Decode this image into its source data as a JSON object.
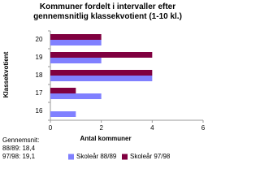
{
  "chart_data": {
    "type": "barh",
    "title": "Kommuner fordelt i intervaller efter gennemsnitlig klassekvotient (1-10 kl.)",
    "y_label": "Klassekvotient",
    "x_label": "Antal kommuner",
    "categories": [
      "20",
      "19",
      "18",
      "17",
      "16"
    ],
    "series": [
      {
        "name": "Skoleår 97/98",
        "color": "#800040",
        "values": [
          2,
          4,
          4,
          1,
          0
        ]
      },
      {
        "name": "Skoleår 88/89",
        "color": "#8080ff",
        "values": [
          2,
          2,
          4,
          2,
          1
        ]
      }
    ],
    "legend_order": [
      1,
      0
    ],
    "xlim": [
      0,
      6
    ],
    "xticks": [
      0,
      2,
      4,
      6
    ],
    "grid": false,
    "annotations": [
      "Gennemsnit:",
      "88/89: 18,4",
      "97/98: 19,1"
    ]
  }
}
